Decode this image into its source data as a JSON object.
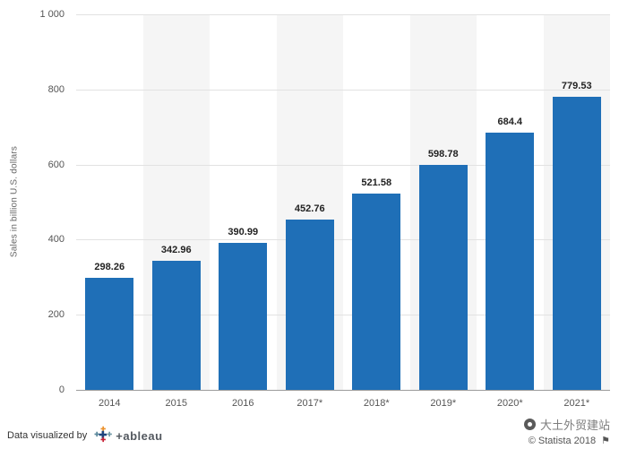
{
  "chart_data": {
    "type": "bar",
    "title": "",
    "xlabel": "",
    "ylabel": "Sales in billion U.S. dollars",
    "categories": [
      "2014",
      "2015",
      "2016",
      "2017*",
      "2018*",
      "2019*",
      "2020*",
      "2021*"
    ],
    "values": [
      298.26,
      342.96,
      390.99,
      452.76,
      521.58,
      598.78,
      684.4,
      779.53
    ],
    "labels": [
      "298.26",
      "342.96",
      "390.99",
      "452.76",
      "521.58",
      "598.78",
      "684.4",
      "779.53"
    ],
    "ylim": [
      0,
      1000
    ],
    "yticks": [
      "1 000",
      "800",
      "600",
      "400",
      "200",
      "0"
    ],
    "ytick_values": [
      1000,
      800,
      600,
      400,
      200,
      0
    ],
    "bar_color": "#1f6fb7",
    "band_color": "#f5f5f5",
    "grid": true,
    "legend_position": "none"
  },
  "footer": {
    "visualized_by": "Data visualized by",
    "tableau_text": "+ableau",
    "brand_right": "大土外贸建站",
    "copyright": "© Statista 2018"
  }
}
